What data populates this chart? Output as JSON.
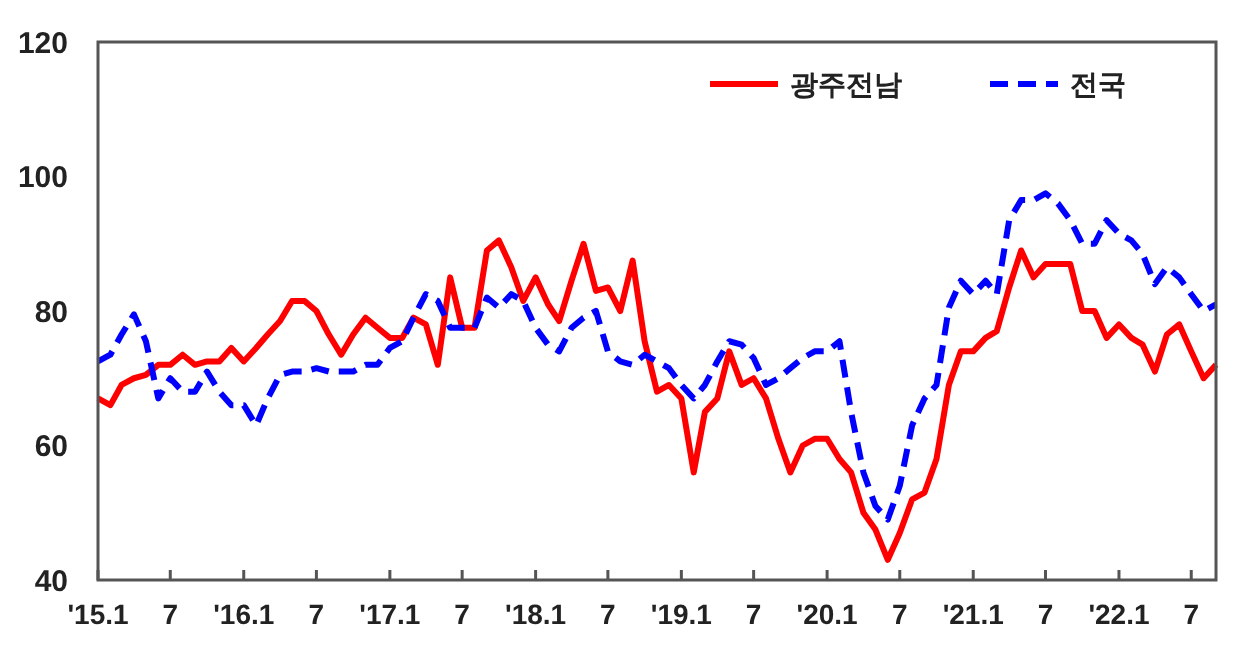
{
  "chart_data": {
    "type": "line",
    "x": [
      "2015-01",
      "2015-02",
      "2015-03",
      "2015-04",
      "2015-05",
      "2015-06",
      "2015-07",
      "2015-08",
      "2015-09",
      "2015-10",
      "2015-11",
      "2015-12",
      "2016-01",
      "2016-02",
      "2016-03",
      "2016-04",
      "2016-05",
      "2016-06",
      "2016-07",
      "2016-08",
      "2016-09",
      "2016-10",
      "2016-11",
      "2016-12",
      "2017-01",
      "2017-02",
      "2017-03",
      "2017-04",
      "2017-05",
      "2017-06",
      "2017-07",
      "2017-08",
      "2017-09",
      "2017-10",
      "2017-11",
      "2017-12",
      "2018-01",
      "2018-02",
      "2018-03",
      "2018-04",
      "2018-05",
      "2018-06",
      "2018-07",
      "2018-08",
      "2018-09",
      "2018-10",
      "2018-11",
      "2018-12",
      "2019-01",
      "2019-02",
      "2019-03",
      "2019-04",
      "2019-05",
      "2019-06",
      "2019-07",
      "2019-08",
      "2019-09",
      "2019-10",
      "2019-11",
      "2019-12",
      "2020-01",
      "2020-02",
      "2020-03",
      "2020-04",
      "2020-05",
      "2020-06",
      "2020-07",
      "2020-08",
      "2020-09",
      "2020-10",
      "2020-11",
      "2020-12",
      "2021-01",
      "2021-02",
      "2021-03",
      "2021-04",
      "2021-05",
      "2021-06",
      "2021-07",
      "2021-08",
      "2021-09",
      "2021-10",
      "2021-11",
      "2021-12",
      "2022-01",
      "2022-02",
      "2022-03",
      "2022-04",
      "2022-05",
      "2022-06",
      "2022-07",
      "2022-08",
      "2022-09"
    ],
    "series": [
      {
        "name": "광주전남",
        "color": "#ff0000",
        "line_style": "solid",
        "values": [
          67,
          66,
          69,
          70,
          70.5,
          72,
          72,
          73.5,
          72,
          72.5,
          72.5,
          74.5,
          72.5,
          74.5,
          76.5,
          78.5,
          81.5,
          81.5,
          80,
          76.5,
          73.5,
          76.5,
          79,
          77.5,
          76,
          76,
          79,
          78,
          72,
          85,
          77.5,
          77.5,
          89,
          90.5,
          86.5,
          81.5,
          85,
          81,
          78.5,
          84.5,
          90,
          83,
          83.5,
          80,
          87.5,
          75.5,
          68,
          69,
          67,
          56,
          65,
          67,
          74,
          69,
          70,
          67,
          61,
          56,
          60,
          61,
          61,
          58,
          56,
          50,
          47.5,
          43,
          47,
          52,
          53,
          58,
          69,
          74,
          74,
          76,
          77,
          83.5,
          89,
          85,
          87,
          87,
          87,
          80,
          80,
          76,
          78,
          76,
          75,
          71,
          76.5,
          78,
          74,
          70,
          72
        ]
      },
      {
        "name": "전국",
        "color": "#0000ff",
        "line_style": "dashed",
        "values": [
          72.5,
          73.5,
          76.5,
          79.5,
          75.5,
          67,
          70,
          68,
          68,
          71,
          68,
          66,
          66,
          63,
          67,
          70.5,
          71,
          71,
          71.5,
          71,
          71,
          71,
          72,
          72,
          74.5,
          75.5,
          79,
          82.5,
          81.5,
          77.5,
          77.5,
          77.5,
          82,
          80.5,
          82.5,
          81.5,
          77.5,
          75,
          74,
          77.5,
          79,
          80,
          74,
          72.5,
          72,
          73.5,
          72.5,
          71.5,
          69,
          67,
          69,
          72.5,
          75.5,
          75,
          73,
          69,
          70,
          71.5,
          73,
          74,
          74,
          75.5,
          65,
          56,
          51,
          49,
          54,
          63,
          67,
          69,
          80.5,
          84.5,
          82.5,
          84.5,
          82.5,
          93.5,
          96.5,
          96.5,
          97.5,
          96,
          93.5,
          90,
          90,
          93.5,
          91.5,
          90.5,
          88.5,
          84,
          86.5,
          85,
          82.5,
          80,
          81
        ]
      }
    ],
    "xlim": [
      "2015-01",
      "2022-09"
    ],
    "xticks": [
      {
        "value": "2015-01",
        "label": "'15.1"
      },
      {
        "value": "2015-07",
        "label": "7"
      },
      {
        "value": "2016-01",
        "label": "'16.1"
      },
      {
        "value": "2016-07",
        "label": "7"
      },
      {
        "value": "2017-01",
        "label": "'17.1"
      },
      {
        "value": "2017-07",
        "label": "7"
      },
      {
        "value": "2018-01",
        "label": "'18.1"
      },
      {
        "value": "2018-07",
        "label": "7"
      },
      {
        "value": "2019-01",
        "label": "'19.1"
      },
      {
        "value": "2019-07",
        "label": "7"
      },
      {
        "value": "2020-01",
        "label": "'20.1"
      },
      {
        "value": "2020-07",
        "label": "7"
      },
      {
        "value": "2021-01",
        "label": "'21.1"
      },
      {
        "value": "2021-07",
        "label": "7"
      },
      {
        "value": "2022-01",
        "label": "'22.1"
      },
      {
        "value": "2022-07",
        "label": "7"
      }
    ],
    "ylim": [
      40,
      120
    ],
    "yticks": [
      40,
      60,
      80,
      100,
      120
    ],
    "grid": false,
    "legend": "top right",
    "marker": "none"
  }
}
